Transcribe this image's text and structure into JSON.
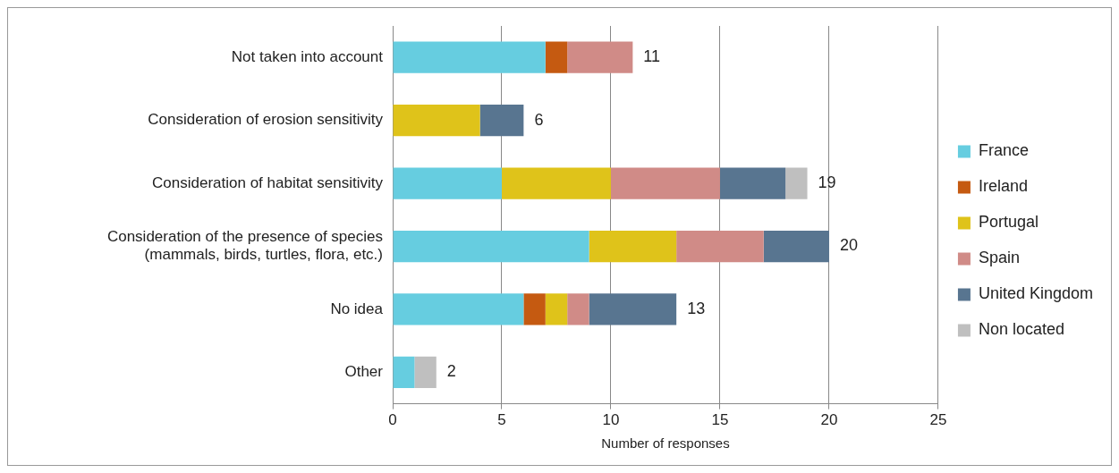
{
  "chart_data": {
    "type": "bar",
    "orientation": "horizontal",
    "stacked": true,
    "xlabel": "Number of responses",
    "categories": [
      "Not taken into account",
      "Consideration of erosion sensitivity",
      "Consideration of habitat sensitivity",
      "Consideration of the presence of species (mammals, birds, turtles, flora, etc.)",
      "No idea",
      "Other"
    ],
    "series": [
      {
        "name": "France",
        "color": "#66cde0",
        "values": [
          7,
          0,
          5,
          9,
          6,
          1
        ]
      },
      {
        "name": "Ireland",
        "color": "#c55a11",
        "values": [
          1,
          0,
          0,
          0,
          1,
          0
        ]
      },
      {
        "name": "Portugal",
        "color": "#dfc31a",
        "values": [
          0,
          4,
          5,
          4,
          1,
          0
        ]
      },
      {
        "name": "Spain",
        "color": "#d08b87",
        "values": [
          3,
          0,
          5,
          4,
          1,
          0
        ]
      },
      {
        "name": "United Kingdom",
        "color": "#587590",
        "values": [
          0,
          2,
          3,
          3,
          4,
          0
        ]
      },
      {
        "name": "Non located",
        "color": "#bfbfbf",
        "values": [
          0,
          0,
          1,
          0,
          0,
          1
        ]
      }
    ],
    "totals": [
      "11",
      "6",
      "19",
      "20",
      "13",
      "2"
    ],
    "xlim": [
      0,
      25
    ],
    "xticks": [
      0,
      5,
      10,
      15,
      20,
      25
    ],
    "grid": "x",
    "legend": "right"
  }
}
